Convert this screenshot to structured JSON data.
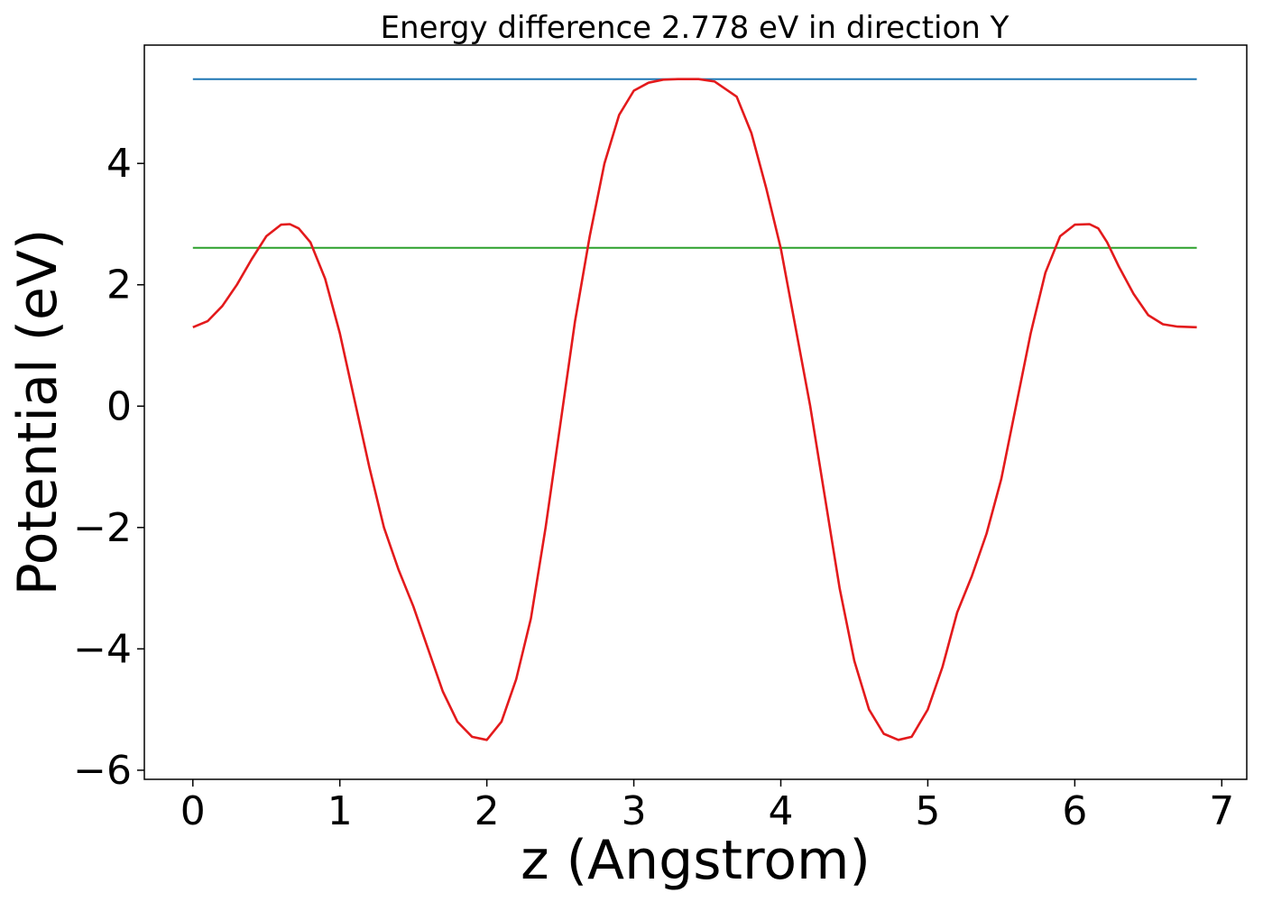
{
  "chart_data": {
    "type": "line",
    "title": "Energy difference 2.778 eV in direction Y",
    "xlabel": "z (Angstrom)",
    "ylabel": "Potential (eV)",
    "xlim": [
      -0.33,
      7.17
    ],
    "ylim": [
      -6.15,
      5.95
    ],
    "xticks": [
      0,
      1,
      2,
      3,
      4,
      5,
      6,
      7
    ],
    "xtick_labels": [
      "0",
      "1",
      "2",
      "3",
      "4",
      "5",
      "6",
      "7"
    ],
    "yticks": [
      -6,
      -4,
      -2,
      0,
      2,
      4
    ],
    "ytick_labels": [
      "−6",
      "−4",
      "−2",
      "0",
      "2",
      "4"
    ],
    "grid": false,
    "series": [
      {
        "color": "#1f77b4",
        "x": [
          0,
          6.83
        ],
        "y": [
          5.39,
          5.39
        ]
      },
      {
        "color": "#2ca02c",
        "x": [
          0,
          6.83
        ],
        "y": [
          2.61,
          2.61
        ]
      },
      {
        "color": "#e31a1c",
        "x": [
          0,
          0.1,
          0.2,
          0.3,
          0.4,
          0.5,
          0.6,
          0.66,
          0.72,
          0.8,
          0.9,
          1.0,
          1.1,
          1.2,
          1.3,
          1.4,
          1.5,
          1.6,
          1.7,
          1.8,
          1.9,
          2.0,
          2.1,
          2.2,
          2.3,
          2.4,
          2.5,
          2.6,
          2.7,
          2.8,
          2.9,
          3.0,
          3.1,
          3.2,
          3.3,
          3.44,
          3.55,
          3.7,
          3.8,
          3.9,
          4.0,
          4.1,
          4.2,
          4.3,
          4.4,
          4.5,
          4.6,
          4.7,
          4.8,
          4.89,
          5.0,
          5.1,
          5.2,
          5.3,
          5.4,
          5.5,
          5.6,
          5.7,
          5.8,
          5.9,
          6.0,
          6.1,
          6.16,
          6.22,
          6.3,
          6.4,
          6.5,
          6.6,
          6.7,
          6.83
        ],
        "y": [
          1.3,
          1.4,
          1.65,
          2.0,
          2.42,
          2.8,
          2.99,
          3.0,
          2.93,
          2.7,
          2.1,
          1.2,
          0.1,
          -1.0,
          -2.0,
          -2.7,
          -3.3,
          -4.0,
          -4.7,
          -5.2,
          -5.45,
          -5.5,
          -5.2,
          -4.5,
          -3.5,
          -2.0,
          -0.3,
          1.4,
          2.8,
          4.0,
          4.8,
          5.2,
          5.33,
          5.38,
          5.39,
          5.39,
          5.35,
          5.1,
          4.5,
          3.6,
          2.6,
          1.3,
          0.0,
          -1.5,
          -3.0,
          -4.2,
          -5.0,
          -5.4,
          -5.5,
          -5.45,
          -5.0,
          -4.3,
          -3.4,
          -2.8,
          -2.1,
          -1.2,
          0.0,
          1.2,
          2.2,
          2.8,
          2.99,
          3.0,
          2.93,
          2.7,
          2.3,
          1.85,
          1.5,
          1.35,
          1.31,
          1.3
        ]
      }
    ]
  }
}
